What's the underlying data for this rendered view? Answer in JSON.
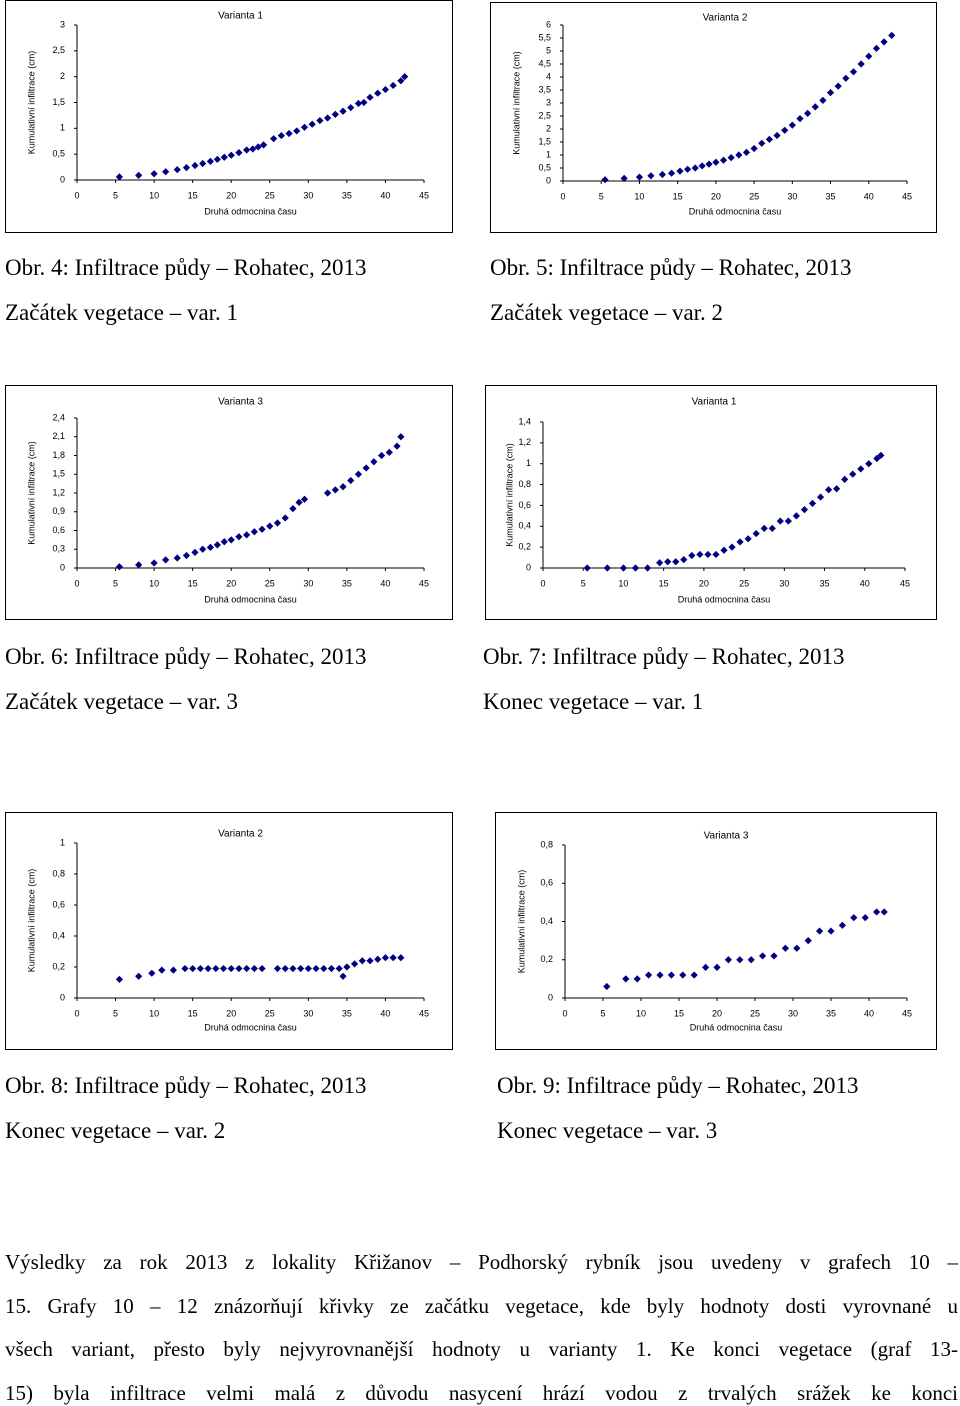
{
  "chart_data": [
    {
      "type": "scatter",
      "title": "Varianta 1",
      "xlabel": "Druhá odmocnina času",
      "ylabel": "Kumulativní infiltrace (cm)",
      "color": "#000080",
      "x": [
        5.5,
        8,
        10,
        11.5,
        13,
        14.2,
        15.3,
        16.3,
        17.3,
        18.2,
        19.1,
        20,
        21,
        22,
        22.8,
        23.5,
        24.2,
        25.5,
        26.5,
        27.5,
        28.5,
        29.5,
        30.5,
        31.5,
        32.5,
        33.5,
        34.5,
        35.5,
        36.5,
        37.2,
        38,
        39,
        40,
        41,
        42,
        42.5
      ],
      "values": [
        0.06,
        0.09,
        0.12,
        0.16,
        0.2,
        0.24,
        0.28,
        0.32,
        0.36,
        0.4,
        0.44,
        0.48,
        0.53,
        0.58,
        0.6,
        0.64,
        0.68,
        0.8,
        0.86,
        0.9,
        0.95,
        1.02,
        1.08,
        1.15,
        1.2,
        1.27,
        1.33,
        1.4,
        1.48,
        1.5,
        1.6,
        1.68,
        1.75,
        1.83,
        1.92,
        2.0
      ],
      "xlim": [
        0,
        45
      ],
      "xticks": [
        0,
        5,
        10,
        15,
        20,
        25,
        30,
        35,
        40,
        45
      ],
      "ylim": [
        0,
        3
      ],
      "yticks": [
        0,
        {
          "value": 0.5,
          "label": "0,5"
        },
        1,
        {
          "value": 1.5,
          "label": "1,5"
        },
        2,
        {
          "value": 2.5,
          "label": "2,5"
        },
        3
      ]
    },
    {
      "type": "scatter",
      "title": "Varianta 2",
      "xlabel": "Druhá odmocnina času",
      "ylabel": "Kumulativní infiltrace (cm)",
      "color": "#000080",
      "x": [
        5.5,
        8,
        10,
        11.5,
        13,
        14.2,
        15.3,
        16.3,
        17.3,
        18.2,
        19.1,
        20,
        21,
        22,
        23,
        24,
        25,
        26,
        27,
        28,
        29,
        30,
        31,
        32,
        33,
        34,
        35,
        36,
        37,
        38,
        39,
        40,
        41,
        42,
        43
      ],
      "values": [
        0.05,
        0.1,
        0.15,
        0.2,
        0.25,
        0.3,
        0.38,
        0.45,
        0.5,
        0.58,
        0.65,
        0.72,
        0.8,
        0.9,
        1.0,
        1.1,
        1.25,
        1.45,
        1.6,
        1.75,
        1.95,
        2.15,
        2.4,
        2.6,
        2.85,
        3.1,
        3.4,
        3.65,
        3.95,
        4.2,
        4.5,
        4.8,
        5.1,
        5.35,
        5.6
      ],
      "xlim": [
        0,
        45
      ],
      "xticks": [
        0,
        5,
        10,
        15,
        20,
        25,
        30,
        35,
        40,
        45
      ],
      "ylim": [
        0,
        6
      ],
      "yticks": [
        0,
        {
          "value": 0.5,
          "label": "0,5"
        },
        1,
        {
          "value": 1.5,
          "label": "1,5"
        },
        2,
        {
          "value": 2.5,
          "label": "2,5"
        },
        3,
        {
          "value": 3.5,
          "label": "3,5"
        },
        4,
        {
          "value": 4.5,
          "label": "4,5"
        },
        5,
        {
          "value": 5.5,
          "label": "5,5"
        },
        6
      ]
    },
    {
      "type": "scatter",
      "title": "Varianta 3",
      "xlabel": "Druhá odmocnina času",
      "ylabel": "Kumulativní infiltrace (cm)",
      "color": "#000080",
      "x": [
        5.5,
        8,
        10,
        11.5,
        13,
        14.2,
        15.3,
        16.3,
        17.3,
        18.2,
        19.1,
        20,
        21,
        22,
        23,
        24,
        25,
        26,
        27,
        28,
        28.8,
        29.5,
        32.5,
        33.5,
        34.5,
        35.5,
        36.5,
        37.5,
        38.5,
        39.5,
        40.5,
        41.5,
        42
      ],
      "values": [
        0.02,
        0.05,
        0.08,
        0.13,
        0.16,
        0.2,
        0.25,
        0.3,
        0.33,
        0.37,
        0.42,
        0.45,
        0.5,
        0.53,
        0.58,
        0.62,
        0.67,
        0.72,
        0.8,
        0.95,
        1.05,
        1.1,
        1.2,
        1.25,
        1.3,
        1.4,
        1.5,
        1.6,
        1.7,
        1.8,
        1.85,
        1.95,
        2.1
      ],
      "xlim": [
        0,
        45
      ],
      "xticks": [
        0,
        5,
        10,
        15,
        20,
        25,
        30,
        35,
        40,
        45
      ],
      "ylim": [
        0,
        2.4
      ],
      "yticks": [
        0,
        {
          "value": 0.3,
          "label": "0,3"
        },
        {
          "value": 0.6,
          "label": "0,6"
        },
        {
          "value": 0.9,
          "label": "0,9"
        },
        {
          "value": 1.2,
          "label": "1,2"
        },
        {
          "value": 1.5,
          "label": "1,5"
        },
        {
          "value": 1.8,
          "label": "1,8"
        },
        {
          "value": 2.1,
          "label": "2,1"
        },
        {
          "value": 2.4,
          "label": "2,4"
        }
      ]
    },
    {
      "type": "scatter",
      "title": "Varianta 1",
      "xlabel": "Druhá odmocnina času",
      "ylabel": "Kumulativní infiltrace (cm)",
      "color": "#000080",
      "x": [
        5.5,
        8,
        10,
        11.5,
        13,
        14.5,
        15.5,
        16.5,
        17.5,
        18.5,
        19.5,
        20.5,
        21.5,
        22.5,
        23.5,
        24.5,
        25.5,
        26.5,
        27.5,
        28.5,
        29.5,
        30.5,
        31.5,
        32.5,
        33.5,
        34.5,
        35.5,
        36.5,
        37.5,
        38.5,
        39.5,
        40.5,
        41.5,
        42
      ],
      "values": [
        0,
        0,
        0,
        0,
        0,
        0.05,
        0.06,
        0.06,
        0.08,
        0.12,
        0.13,
        0.13,
        0.13,
        0.17,
        0.2,
        0.25,
        0.28,
        0.33,
        0.38,
        0.38,
        0.45,
        0.45,
        0.5,
        0.56,
        0.62,
        0.68,
        0.75,
        0.76,
        0.85,
        0.9,
        0.95,
        1.0,
        1.05,
        1.08
      ],
      "xlim": [
        0,
        45
      ],
      "xticks": [
        0,
        5,
        10,
        15,
        20,
        25,
        30,
        35,
        40,
        45
      ],
      "ylim": [
        0,
        1.4
      ],
      "yticks": [
        0,
        {
          "value": 0.2,
          "label": "0,2"
        },
        {
          "value": 0.4,
          "label": "0,4"
        },
        {
          "value": 0.6,
          "label": "0,6"
        },
        {
          "value": 0.8,
          "label": "0,8"
        },
        1,
        {
          "value": 1.2,
          "label": "1,2"
        },
        {
          "value": 1.4,
          "label": "1,4"
        }
      ]
    },
    {
      "type": "scatter",
      "title": "Varianta 2",
      "xlabel": "Druhá odmocnina času",
      "ylabel": "Kumulativní infiltrace (cm)",
      "color": "#000080",
      "x": [
        5.5,
        8,
        9.7,
        11,
        12.5,
        14,
        15,
        16,
        17,
        18,
        19,
        20,
        21,
        22,
        23,
        24,
        26,
        27,
        28,
        29,
        30,
        31,
        32,
        33,
        34,
        34.5,
        35,
        36,
        37,
        38,
        39,
        40,
        41,
        42
      ],
      "values": [
        0.12,
        0.14,
        0.16,
        0.18,
        0.18,
        0.19,
        0.19,
        0.19,
        0.19,
        0.19,
        0.19,
        0.19,
        0.19,
        0.19,
        0.19,
        0.19,
        0.19,
        0.19,
        0.19,
        0.19,
        0.19,
        0.19,
        0.19,
        0.19,
        0.19,
        0.14,
        0.2,
        0.22,
        0.24,
        0.24,
        0.25,
        0.26,
        0.26,
        0.26
      ],
      "xlim": [
        0,
        45
      ],
      "xticks": [
        0,
        5,
        10,
        15,
        20,
        25,
        30,
        35,
        40,
        45
      ],
      "ylim": [
        0,
        1
      ],
      "yticks": [
        0,
        {
          "value": 0.2,
          "label": "0,2"
        },
        {
          "value": 0.4,
          "label": "0,4"
        },
        {
          "value": 0.6,
          "label": "0,6"
        },
        {
          "value": 0.8,
          "label": "0,8"
        },
        1
      ]
    },
    {
      "type": "scatter",
      "title": "Varianta 3",
      "xlabel": "Druhá odmocnina času",
      "ylabel": "Kumulativní infiltrace (cm)",
      "color": "#000080",
      "x": [
        5.5,
        8,
        9.5,
        11,
        12.5,
        14,
        15.5,
        17,
        18.5,
        20,
        21.5,
        23,
        24.5,
        26,
        27.5,
        29,
        30.5,
        32,
        33.5,
        35,
        36.5,
        38,
        39.5,
        41,
        42
      ],
      "values": [
        0.06,
        0.1,
        0.1,
        0.12,
        0.12,
        0.12,
        0.12,
        0.12,
        0.16,
        0.16,
        0.2,
        0.2,
        0.2,
        0.22,
        0.22,
        0.26,
        0.26,
        0.3,
        0.35,
        0.35,
        0.38,
        0.42,
        0.42,
        0.45,
        0.45
      ],
      "xlim": [
        0,
        45
      ],
      "xticks": [
        0,
        5,
        10,
        15,
        20,
        25,
        30,
        35,
        40,
        45
      ],
      "ylim": [
        0,
        0.8
      ],
      "yticks": [
        0,
        {
          "value": 0.2,
          "label": "0,2"
        },
        {
          "value": 0.4,
          "label": "0,4"
        },
        {
          "value": 0.6,
          "label": "0,6"
        },
        {
          "value": 0.8,
          "label": "0,8"
        }
      ]
    }
  ],
  "captions": [
    [
      "Obr. 4: Infiltrace půdy – Rohatec, 2013",
      "Začátek vegetace – var. 1"
    ],
    [
      "Obr. 5: Infiltrace půdy – Rohatec, 2013",
      "Začátek vegetace – var. 2"
    ],
    [
      "Obr. 6: Infiltrace půdy – Rohatec, 2013",
      "Začátek vegetace – var. 3"
    ],
    [
      "Obr. 7: Infiltrace půdy – Rohatec, 2013",
      "Konec vegetace – var. 1"
    ],
    [
      "Obr. 8: Infiltrace půdy – Rohatec, 2013",
      "Konec vegetace – var. 2"
    ],
    [
      "Obr. 9: Infiltrace půdy – Rohatec, 2013",
      "Konec vegetace – var. 3"
    ]
  ],
  "paragraph": [
    "Výsledky za rok 2013 z lokality Křižanov – Podhorský rybník jsou uvedeny v grafech 10 –",
    "15. Grafy 10 – 12 znázorňují křivky ze začátku vegetace, kde byly hodnoty dosti vyrovnané u",
    "všech variant, přesto byly nejvyrovnanější hodnoty u varianty 1. Ke konci vegetace (graf 13-",
    "15) byla infiltrace velmi malá z důvodu nasycení hrází vodou z trvalých srážek ke konci"
  ]
}
